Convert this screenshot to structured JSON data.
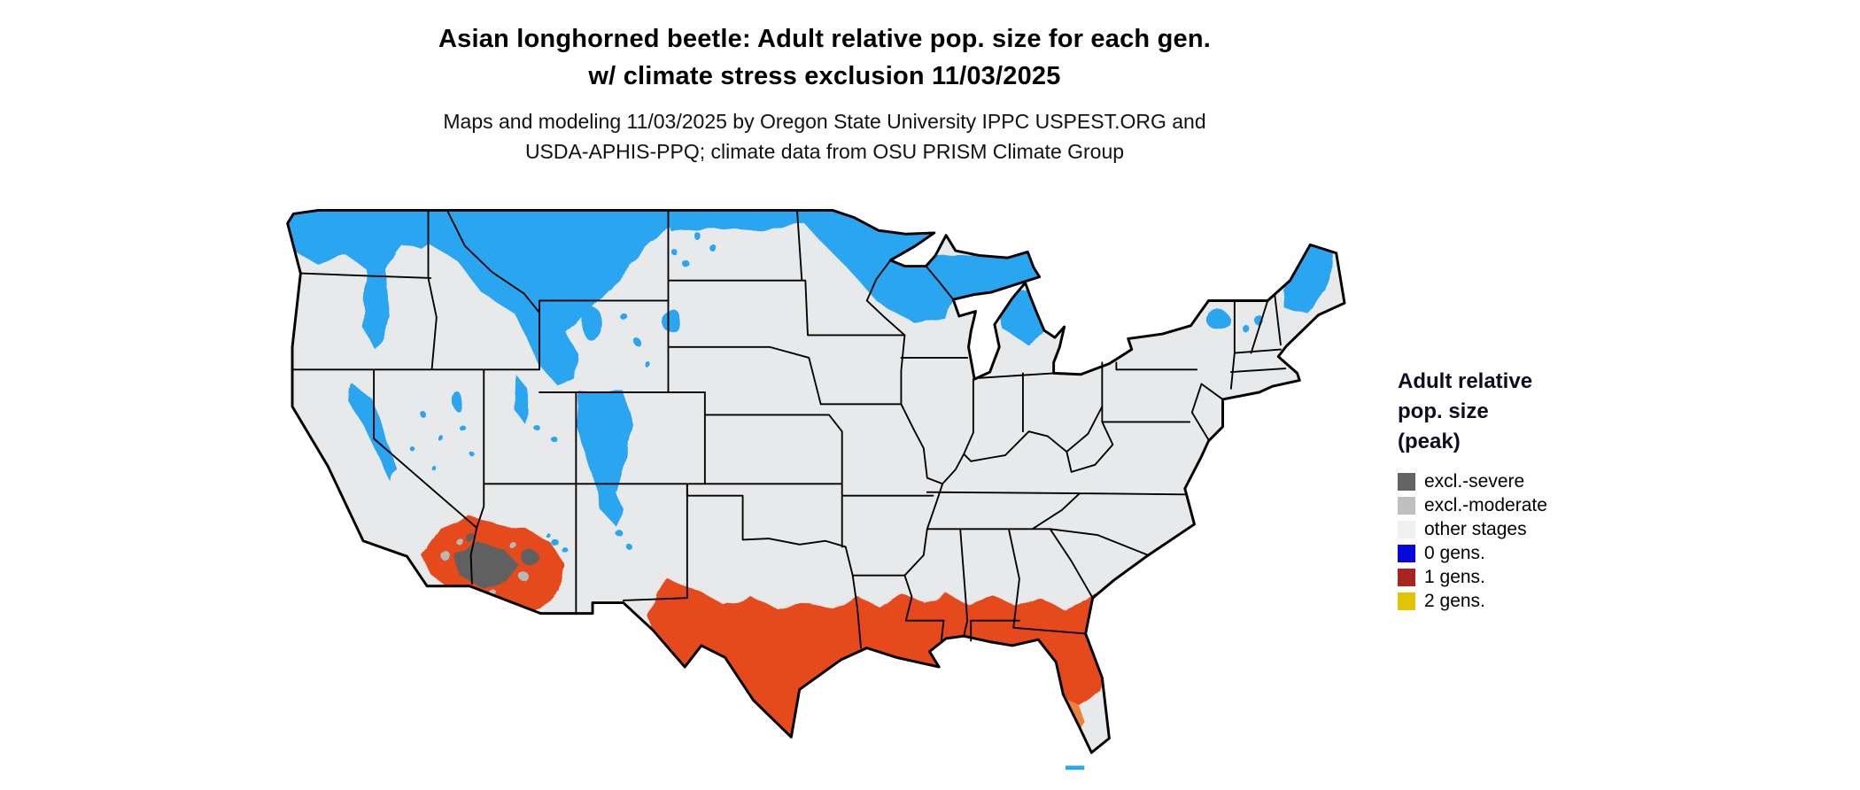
{
  "header": {
    "title_line1": "Asian longhorned beetle: Adult relative pop. size for each gen.",
    "title_line2": "w/ climate stress exclusion 11/03/2025",
    "subtitle_line1": "Maps and modeling 11/03/2025 by Oregon State University IPPC USPEST.ORG and",
    "subtitle_line2": "USDA-APHIS-PPQ; climate data from OSU PRISM Climate Group"
  },
  "legend": {
    "title_lines": [
      "Adult relative",
      "pop. size",
      "(peak)"
    ],
    "items": [
      {
        "label": "excl.-severe",
        "color": "#636363"
      },
      {
        "label": "excl.-moderate",
        "color": "#bfbfbf"
      },
      {
        "label": "other stages",
        "color": "#f0f0f0"
      },
      {
        "label": "0 gens.",
        "color": "#0808dd"
      },
      {
        "label": "1 gens.",
        "color": "#a82420"
      },
      {
        "label": "2 gens.",
        "color": "#e3c400"
      }
    ]
  },
  "map": {
    "name": "contiguous-us-generations-map",
    "palette": {
      "background": "#ffffff",
      "base_other_stages": "#e8e9ea",
      "zero_gens_blue": "#2ba6f0",
      "one_gen_red": "#e64a1d",
      "one_gen_orange_fade": "#f0813c",
      "excl_severe_gray": "#606060",
      "excl_moderate_gray": "#b8b8b8",
      "state_border": "#000000"
    }
  }
}
